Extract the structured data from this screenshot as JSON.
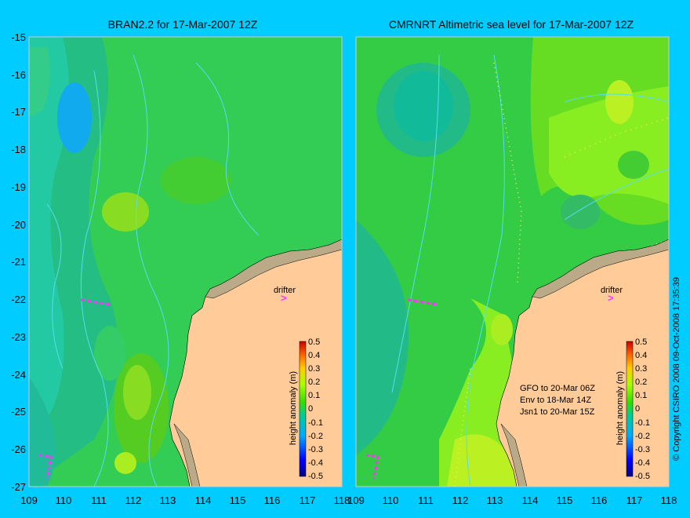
{
  "left_panel": {
    "title": "BRAN2.2 for 17-Mar-2007 12Z",
    "drifter_label": "drifter"
  },
  "right_panel": {
    "title": "CMRNRT Altimetric sea level  for 17-Mar-2007 12Z",
    "drifter_label": "drifter",
    "satellite_info": [
      "GFO to 20-Mar 06Z",
      "Env to 18-Mar 14Z",
      "Jsn1 to 20-Mar 15Z"
    ]
  },
  "axes": {
    "y_ticks": [
      "-15",
      "-16",
      "-17",
      "-18",
      "-19",
      "-20",
      "-21",
      "-22",
      "-23",
      "-24",
      "-25",
      "-26",
      "-27"
    ],
    "x_ticks": [
      "109",
      "110",
      "111",
      "112",
      "113",
      "114",
      "115",
      "116",
      "117",
      "118"
    ]
  },
  "colorbar": {
    "label": "height anomaly (m)",
    "ticks": [
      "0.5",
      "0.4",
      "0.3",
      "0.2",
      "0.1",
      "0",
      "-0.1",
      "-0.2",
      "-0.3",
      "-0.4",
      "-0.5"
    ]
  },
  "copyright": "© Copyright CSIRO 2008    09-Oct-2008 17:35:39",
  "colors": {
    "background": "#00ccff",
    "land": "#ffcc99",
    "ocean_green": "#33cc33",
    "drifter_track": "#ff33ff"
  }
}
